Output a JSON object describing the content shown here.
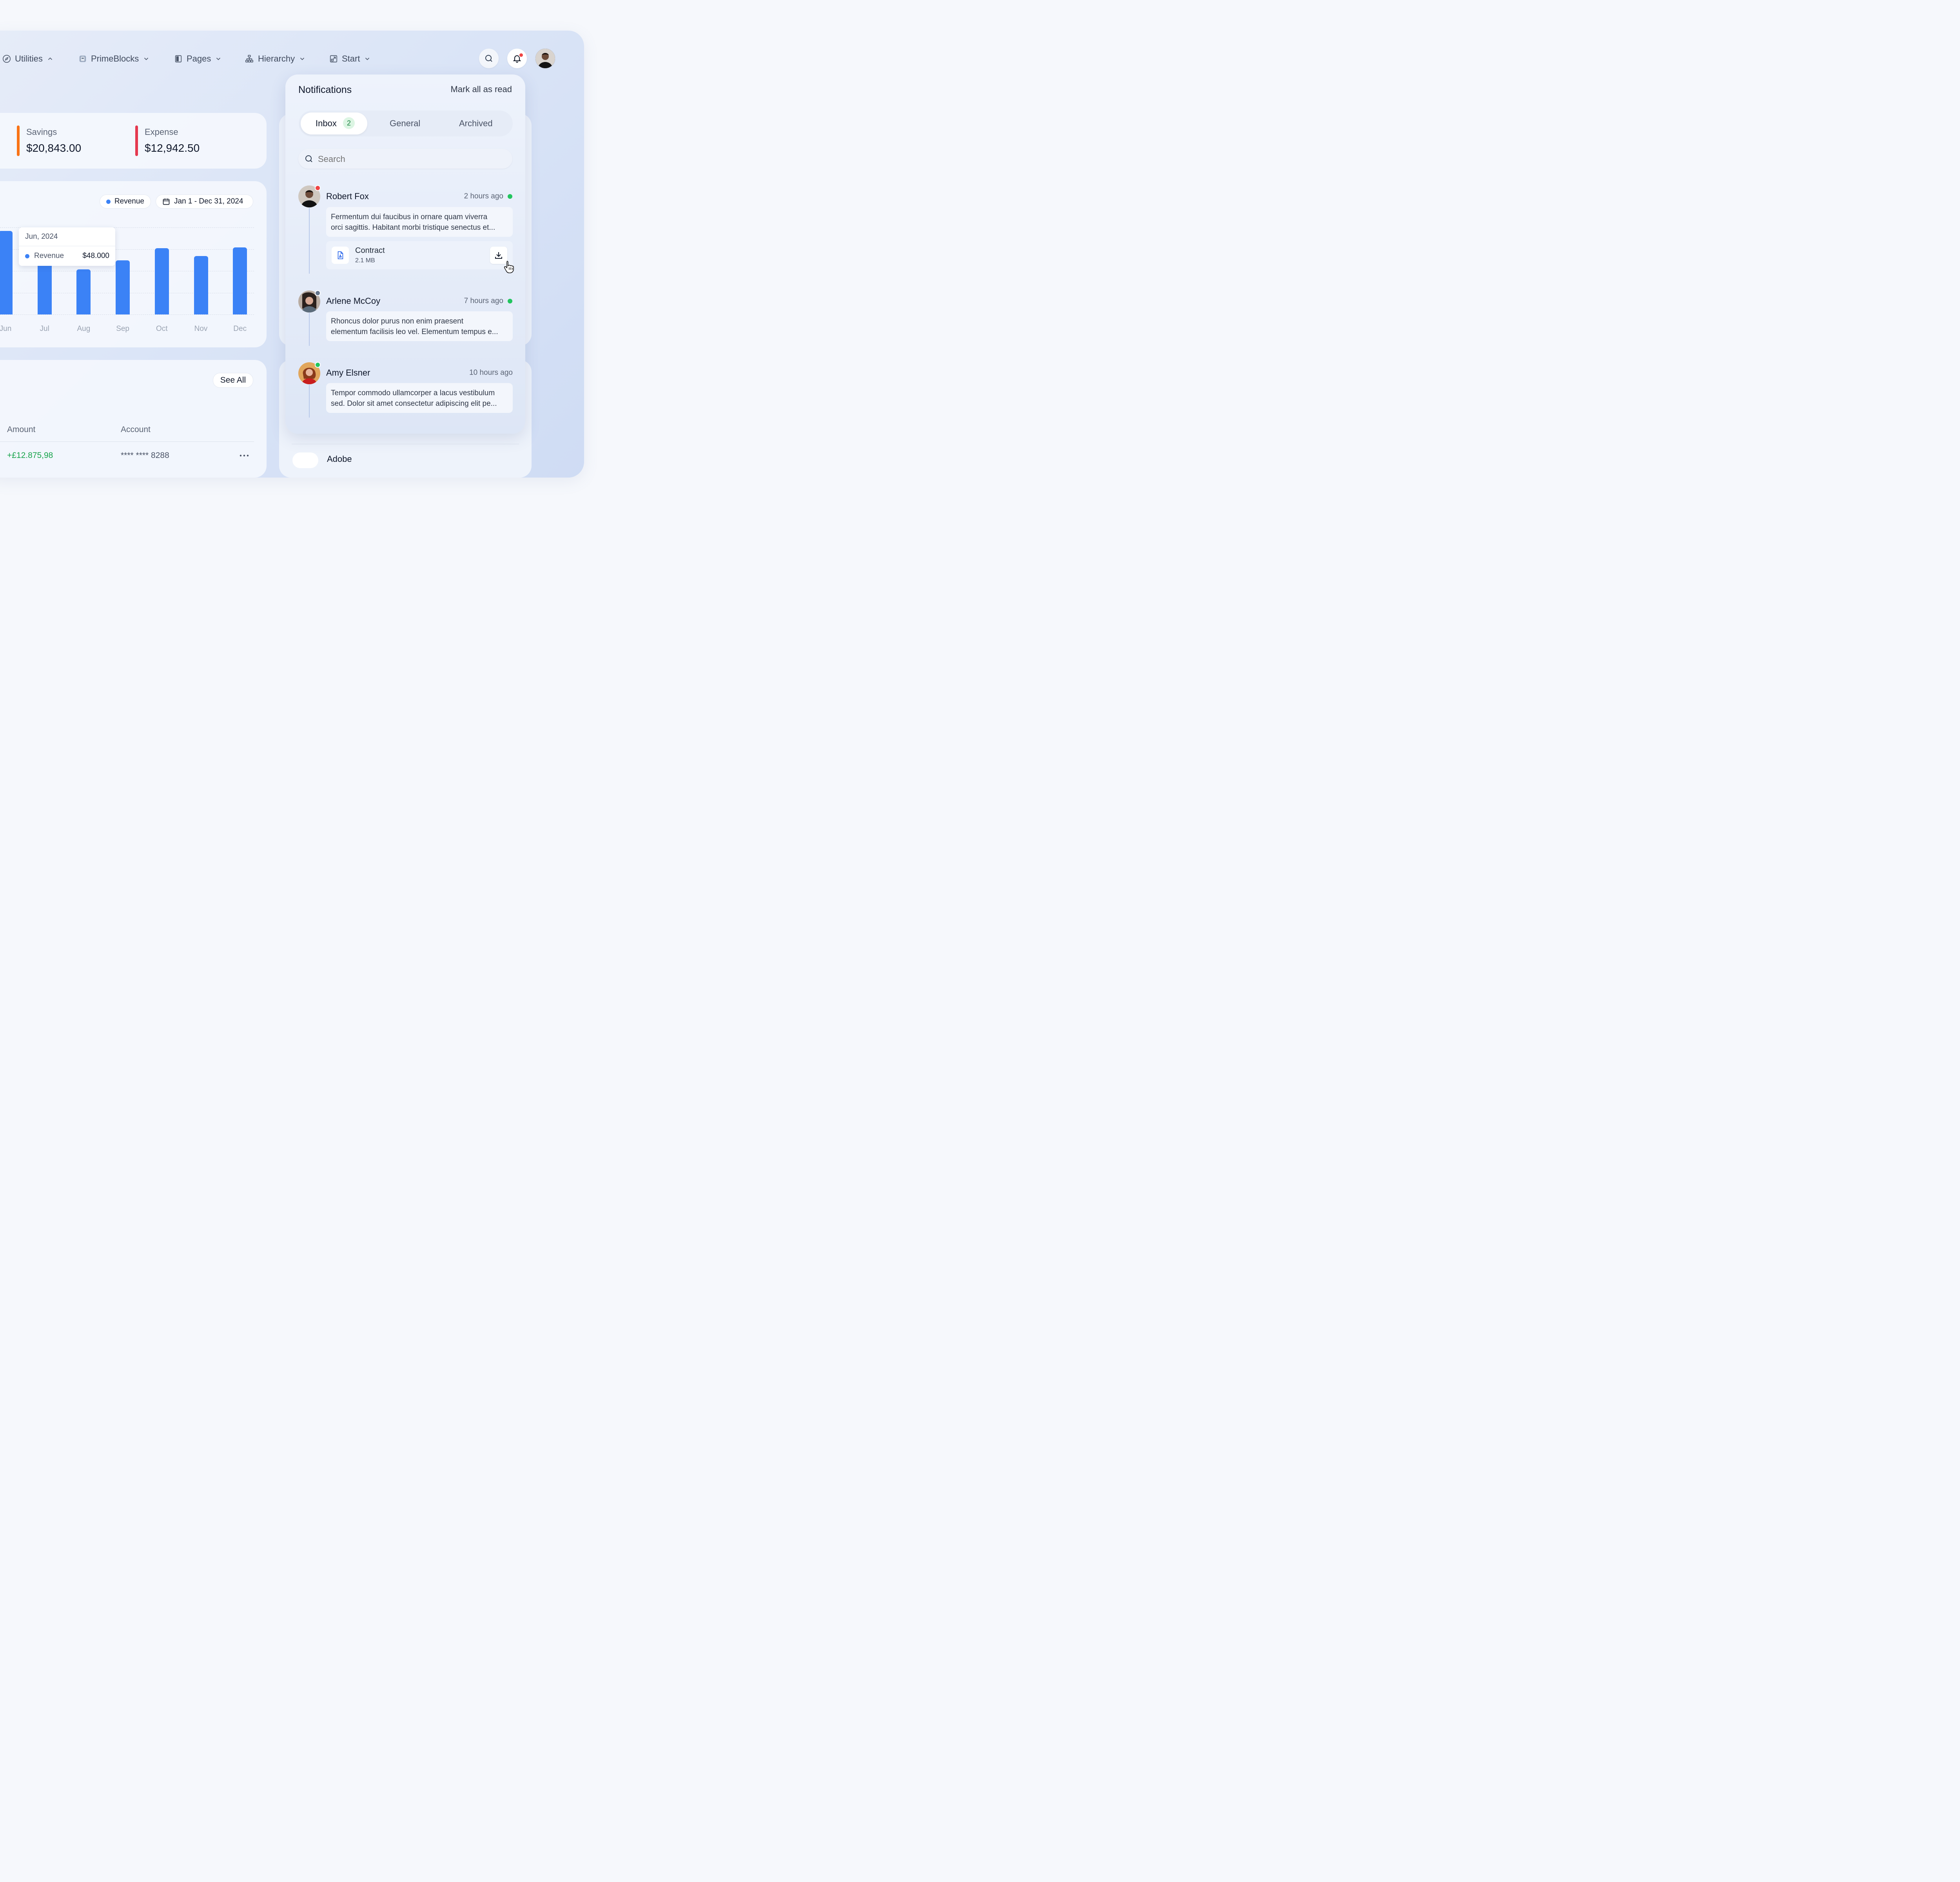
{
  "nav": {
    "items": [
      {
        "label": "Utilities",
        "icon": "compass-icon",
        "chevron": "up"
      },
      {
        "label": "PrimeBlocks",
        "icon": "primeblocks-logo-icon",
        "chevron": "down"
      },
      {
        "label": "Pages",
        "icon": "page-icon",
        "chevron": "down"
      },
      {
        "label": "Hierarchy",
        "icon": "hierarchy-icon",
        "chevron": "down"
      },
      {
        "label": "Start",
        "icon": "external-link-icon",
        "chevron": "down"
      }
    ]
  },
  "stats": {
    "savings": {
      "label": "Savings",
      "value": "$20,843.00",
      "color": "#f97316"
    },
    "expense": {
      "label": "Expense",
      "value": "$12,942.50",
      "color": "#e5384f"
    }
  },
  "chart": {
    "legend_label": "Revenue",
    "date_range": "Jan 1 - Dec 31, 2024",
    "tooltip": {
      "title": "Jun, 2024",
      "series": "Revenue",
      "value": "$48.000"
    }
  },
  "chart_data": {
    "type": "bar",
    "categories": [
      "Jun",
      "Jul",
      "Aug",
      "Sep",
      "Oct",
      "Nov",
      "Dec"
    ],
    "series": [
      {
        "name": "Revenue",
        "values": [
          48000,
          31000,
          26000,
          31000,
          38000,
          33500,
          38500
        ]
      }
    ],
    "grid": true,
    "legend": "top-right",
    "bar_color": "#3b82f6"
  },
  "transactions": {
    "see_all": "See All",
    "columns": [
      "Amount",
      "Account"
    ],
    "rows": [
      {
        "amount": "+£12.875,98",
        "account": "**** **** 8288"
      }
    ]
  },
  "notifications": {
    "title": "Notifications",
    "mark_all": "Mark all as read",
    "tabs": [
      {
        "label": "Inbox",
        "count": "2"
      },
      {
        "label": "General"
      },
      {
        "label": "Archived"
      }
    ],
    "search_placeholder": "Search",
    "items": [
      {
        "name": "Robert Fox",
        "time": "2 hours ago",
        "lines": [
          "Fermentum dui faucibus in ornare quam viverra",
          "orci sagittis. Habitant morbi tristique senectus et..."
        ],
        "attachment": {
          "name": "Contract",
          "size": "2.1 MB"
        }
      },
      {
        "name": "Arlene McCoy",
        "time": "7 hours ago",
        "lines": [
          "Rhoncus dolor purus non enim praesent",
          "elementum facilisis leo vel. Elementum tempus e..."
        ]
      },
      {
        "name": "Amy Elsner",
        "time": "10 hours ago",
        "lines": [
          "Tempor commodo ullamcorper a lacus vestibulum",
          "sed. Dolor sit amet consectetur adipiscing elit pe..."
        ]
      }
    ]
  },
  "below_panel": {
    "label": "Adobe"
  },
  "colors": {
    "accent": "#3b82f6",
    "online": "#22c55e",
    "unread": "#ef4444",
    "positive": "#16a34a"
  }
}
